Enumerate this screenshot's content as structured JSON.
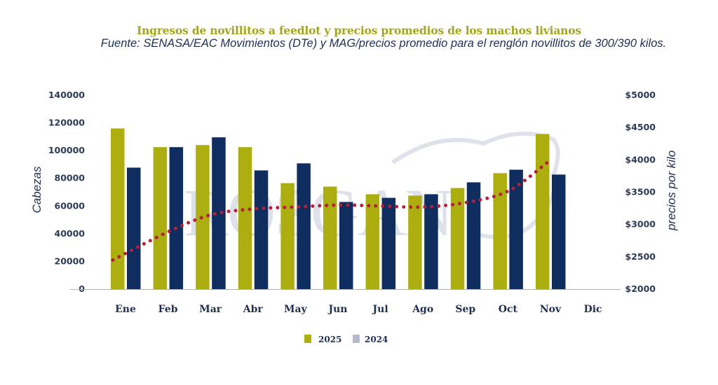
{
  "chart_data": {
    "type": "bar",
    "title": "Ingresos de novillitos a feedlot y precios promedios de los machos livianos",
    "subtitle": "Fuente: SENASA/EAC Movimientos (DTe) y MAG/precios promedio para el renglón novillitos de 300/390 kilos.",
    "categories": [
      "Ene",
      "Feb",
      "Mar",
      "Abr",
      "May",
      "Jun",
      "Jul",
      "Ago",
      "Sep",
      "Oct",
      "Nov",
      "Dic"
    ],
    "series": [
      {
        "name": "2025",
        "axis": "left",
        "color": "#acad0f",
        "values": [
          116000,
          102500,
          104000,
          102500,
          76500,
          74000,
          68500,
          67500,
          73000,
          83700,
          112000,
          null
        ]
      },
      {
        "name": "2024",
        "axis": "left",
        "color": "#0f2d5e",
        "legend_color": "#b4b9cc",
        "values": [
          87700,
          102500,
          109600,
          85700,
          90800,
          62900,
          65900,
          68500,
          77100,
          86200,
          82700,
          null
        ]
      },
      {
        "name": "precio",
        "axis": "right",
        "type": "line",
        "style": "dotted",
        "color": "#b51f3a",
        "show_in_legend": false,
        "values": [
          2450,
          2890,
          3150,
          3240,
          3270,
          3300,
          3285,
          3270,
          3340,
          3520,
          3970,
          null
        ]
      }
    ],
    "xlabel": "",
    "ylabel": "Cabezas",
    "y2label": "precios por kilo",
    "ylim": [
      0,
      140000
    ],
    "y2lim": [
      2000,
      5000
    ],
    "yticks": [
      "0",
      "20000",
      "40000",
      "60000",
      "80000",
      "100000",
      "120000",
      "140000"
    ],
    "ytick_values": [
      0,
      20000,
      40000,
      60000,
      80000,
      100000,
      120000,
      140000
    ],
    "y2ticks": [
      "$2000",
      "$2500",
      "$3000",
      "$3500",
      "$4000",
      "$4500",
      "$5000"
    ],
    "grid": false,
    "legend": {
      "placement": "bottom-center",
      "items": [
        "2025",
        "2024"
      ]
    },
    "watermark": "ROSGAN"
  }
}
